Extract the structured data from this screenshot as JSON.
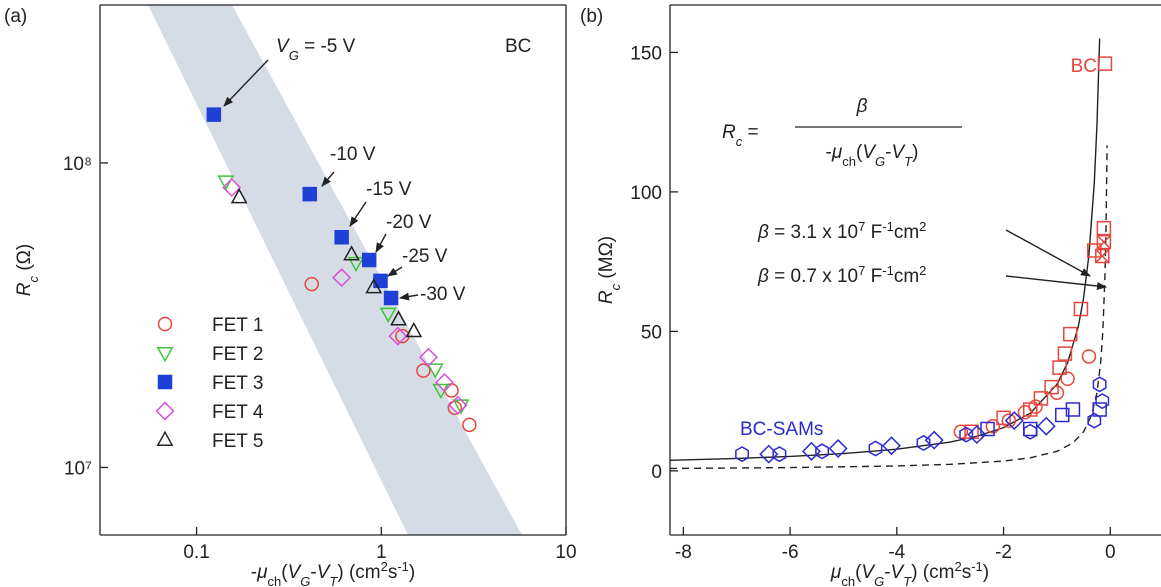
{
  "chart_data": [
    {
      "type": "scatter",
      "panel_label": "(a)",
      "x_label": [
        "-",
        "μ",
        "ch",
        "(",
        "V",
        "G",
        "-",
        "V",
        "T",
        ") (cm",
        "2",
        "s",
        "-1",
        ")"
      ],
      "y_label": [
        "R",
        "c",
        " (Ω)"
      ],
      "xscale": "log",
      "yscale": "log",
      "xlim": [
        0.03,
        10
      ],
      "ylim": [
        6000000,
        330000000
      ],
      "xticks": [
        0.1,
        1,
        10
      ],
      "yticks": [
        {
          "value": 10000000,
          "label": "10⁷"
        },
        {
          "value": 100000000,
          "label": "10⁸"
        }
      ],
      "legend": "lower left",
      "series": [
        {
          "name": "FET 1",
          "color": "#e8453c",
          "marker": "circle",
          "filled": false,
          "x": [
            0.42,
            1.3,
            1.69,
            2.4,
            2.5,
            3.0
          ],
          "values": [
            40000000,
            27000000,
            20800000,
            17900000,
            15700000,
            13800000
          ]
        },
        {
          "name": "FET 2",
          "color": "#3cc43c",
          "marker": "triangle-down",
          "filled": false,
          "x": [
            0.144,
            0.73,
            1.09,
            1.96,
            2.1,
            2.7
          ],
          "values": [
            87000000,
            47000000,
            32000000,
            21000000,
            18000000,
            16000000
          ]
        },
        {
          "name": "FET 3",
          "color": "#1f3fd6",
          "marker": "square",
          "filled": true,
          "x": [
            0.124,
            0.41,
            0.61,
            0.86,
            0.99,
            1.13
          ],
          "values": [
            144000000,
            79000000,
            57000000,
            48000000,
            41000000,
            36000000
          ]
        },
        {
          "name": "FET 4",
          "color": "#d94fd9",
          "marker": "diamond",
          "filled": false,
          "x": [
            0.155,
            0.61,
            1.23,
            1.8,
            2.2,
            2.6
          ],
          "values": [
            83000000,
            42000000,
            27000000,
            23000000,
            19000000,
            16000000
          ]
        },
        {
          "name": "FET 5",
          "color": "#222222",
          "marker": "triangle-up",
          "filled": false,
          "x": [
            0.17,
            0.69,
            0.91,
            1.24,
            1.5
          ],
          "values": [
            77000000,
            50000000,
            39000000,
            30600000,
            28000000
          ]
        }
      ],
      "annotations": [
        [
          "V",
          "G",
          " = -5 V"
        ],
        [
          "-10 V"
        ],
        [
          "-15 V"
        ],
        [
          "-20 V"
        ],
        [
          "-25 V"
        ],
        [
          "-30 V"
        ],
        [
          "BC"
        ]
      ]
    },
    {
      "type": "scatter",
      "panel_label": "(b)",
      "x_label": [
        "μ",
        "ch",
        "(",
        "V",
        "G",
        "-",
        "V",
        "T",
        ") (cm",
        "2",
        "s",
        "-1",
        ")"
      ],
      "y_label": [
        "R",
        "c",
        " (MΩ)"
      ],
      "xlim": [
        -8.25,
        0.95
      ],
      "ylim": [
        -23,
        167
      ],
      "xticks": [
        -8,
        -6,
        -4,
        -2,
        0
      ],
      "yticks": [
        0,
        50,
        100,
        150
      ],
      "equation": {
        "lhs": [
          "R",
          "c",
          " ="
        ],
        "numerator": "β",
        "denominator": [
          "-",
          "μ",
          "ch",
          "(",
          "V",
          "G",
          "-",
          "V",
          "T",
          ")"
        ]
      },
      "fit_labels": [
        [
          "β",
          " = 3.1 x 10",
          "7",
          " F",
          "-1",
          "cm",
          "2"
        ],
        [
          "β",
          " = 0.7 x 10",
          "7",
          " F",
          "-1",
          "cm",
          "2"
        ]
      ],
      "group_labels": [
        {
          "text": "BC",
          "color": "#e8453c"
        },
        {
          "text": "BC-SAMs",
          "color": "#2a2ad0"
        }
      ],
      "series": [
        {
          "color": "#222222",
          "dash": false,
          "x": [
            -8.25,
            -7,
            -6,
            -5,
            -4,
            -3,
            -2.5,
            -2,
            -1.5,
            -1,
            -0.8,
            -0.6,
            -0.5,
            -0.4,
            -0.3,
            -0.25,
            -0.2
          ],
          "values": [
            3.76,
            4.43,
            5.17,
            6.2,
            7.75,
            10.33,
            12.4,
            15.5,
            20.67,
            31,
            38.75,
            51.67,
            62,
            77.5,
            103.3,
            124,
            155
          ]
        },
        {
          "color": "#222222",
          "dash": true,
          "x": [
            -8.25,
            -6,
            -4,
            -3,
            -2,
            -1.5,
            -1,
            -0.7,
            -0.5,
            -0.35,
            -0.25,
            -0.18,
            -0.14,
            -0.1,
            -0.08,
            -0.06
          ],
          "values": [
            0.85,
            1.17,
            1.75,
            2.33,
            3.5,
            4.67,
            7,
            10,
            14,
            20,
            28,
            38.9,
            50,
            70,
            87.5,
            116.7
          ]
        },
        {
          "color": "#e8453c",
          "marker": "square",
          "filled": false,
          "x": [
            -0.1,
            -0.3,
            -0.12,
            -0.55,
            -0.75,
            -0.85,
            -0.95,
            -1.1,
            -1.3,
            -1.5,
            -2.0,
            -2.6
          ],
          "values": [
            146,
            79,
            87,
            58,
            49,
            42,
            37,
            30,
            26,
            22,
            19,
            14
          ]
        },
        {
          "color": "#e8453c",
          "marker": "square-cross",
          "filled": false,
          "x": [
            -0.12,
            -0.15
          ],
          "values": [
            82,
            77
          ]
        },
        {
          "color": "#e8453c",
          "marker": "circle",
          "filled": false,
          "x": [
            -2.8,
            -2.2,
            -1.9,
            -1.6,
            -1.4,
            -1.0,
            -0.8,
            -0.4
          ],
          "values": [
            14,
            16,
            18,
            21,
            23,
            28,
            33,
            41
          ]
        },
        {
          "color": "#2a2ad0",
          "marker": "hexagon",
          "filled": false,
          "x": [
            -6.9,
            -6.2,
            -5.4,
            -4.4,
            -3.5,
            -2.7,
            -1.5,
            -0.3,
            -0.15,
            -0.2
          ],
          "values": [
            6,
            6,
            7,
            8,
            10,
            13,
            14,
            18,
            25,
            31
          ]
        },
        {
          "color": "#2a2ad0",
          "marker": "diamond",
          "filled": false,
          "x": [
            -6.4,
            -5.6,
            -5.1,
            -4.1,
            -3.3,
            -2.5,
            -1.8,
            -1.2
          ],
          "values": [
            6,
            7,
            8,
            9,
            11,
            13,
            18,
            16
          ]
        },
        {
          "color": "#2a2ad0",
          "marker": "square",
          "filled": false,
          "x": [
            -2.3,
            -1.5,
            -0.9,
            -0.7,
            -0.2
          ],
          "values": [
            15,
            15,
            20,
            22,
            22
          ]
        }
      ]
    }
  ]
}
